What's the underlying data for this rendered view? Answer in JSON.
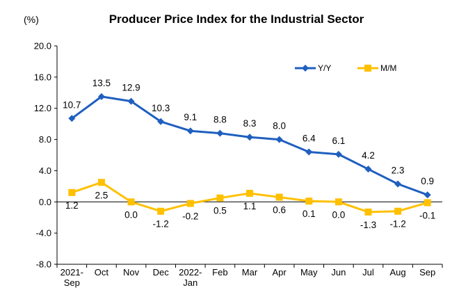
{
  "chart_data": {
    "type": "line",
    "title": "Producer Price Index for the Industrial Sector",
    "unit_label": "(%)",
    "xlabel": "",
    "ylabel": "",
    "categories": [
      [
        "2021-",
        "Sep"
      ],
      [
        "Oct"
      ],
      [
        "Nov"
      ],
      [
        "Dec"
      ],
      [
        "2022-",
        "Jan"
      ],
      [
        "Feb"
      ],
      [
        "Mar"
      ],
      [
        "Apr"
      ],
      [
        "May"
      ],
      [
        "Jun"
      ],
      [
        "Jul"
      ],
      [
        "Aug"
      ],
      [
        "Sep"
      ]
    ],
    "ylim": [
      -8.0,
      20.0
    ],
    "yticks": [
      -8.0,
      -4.0,
      0.0,
      4.0,
      8.0,
      12.0,
      16.0,
      20.0
    ],
    "ytick_labels": [
      "-8.0",
      "-4.0",
      "0.0",
      "4.0",
      "8.0",
      "12.0",
      "16.0",
      "20.0"
    ],
    "grid": false,
    "legend_position": "top-right",
    "series": [
      {
        "name": "Y/Y",
        "color": "#1f5fbf",
        "marker": "diamond",
        "label_position": "above",
        "values": [
          10.7,
          13.5,
          12.9,
          10.3,
          9.1,
          8.8,
          8.3,
          8.0,
          6.4,
          6.1,
          4.2,
          2.3,
          0.9
        ],
        "labels": [
          "10.7",
          "13.5",
          "12.9",
          "10.3",
          "9.1",
          "8.8",
          "8.3",
          "8.0",
          "6.4",
          "6.1",
          "4.2",
          "2.3",
          "0.9"
        ]
      },
      {
        "name": "M/M",
        "color": "#ffc000",
        "marker": "square",
        "label_position": "below",
        "values": [
          1.2,
          2.5,
          0.0,
          -1.2,
          -0.2,
          0.5,
          1.1,
          0.6,
          0.1,
          0.0,
          -1.3,
          -1.2,
          -0.1
        ],
        "labels": [
          "1.2",
          "2.5",
          "0.0",
          "-1.2",
          "-0.2",
          "0.5",
          "1.1",
          "0.6",
          "0.1",
          "0.0",
          "-1.3",
          "-1.2",
          "-0.1"
        ]
      }
    ]
  }
}
